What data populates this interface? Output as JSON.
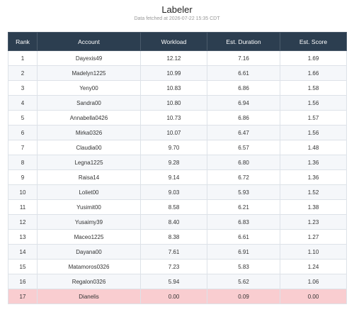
{
  "header": {
    "title": "Labeler",
    "subtitle": "Data fetched at 2026-07-22 15:35 CDT"
  },
  "table": {
    "columns": [
      "Rank",
      "Account",
      "Workload",
      "Est. Duration",
      "Est. Score"
    ],
    "rows": [
      [
        "1",
        "Dayexis49",
        "12.12",
        "7.16",
        "1.69"
      ],
      [
        "2",
        "Madelyn1225",
        "10.99",
        "6.61",
        "1.66"
      ],
      [
        "3",
        "Yeny00",
        "10.83",
        "6.86",
        "1.58"
      ],
      [
        "4",
        "Sandra00",
        "10.80",
        "6.94",
        "1.56"
      ],
      [
        "5",
        "Annabella0426",
        "10.73",
        "6.86",
        "1.57"
      ],
      [
        "6",
        "Mirka0326",
        "10.07",
        "6.47",
        "1.56"
      ],
      [
        "7",
        "Claudia00",
        "9.70",
        "6.57",
        "1.48"
      ],
      [
        "8",
        "Legna1225",
        "9.28",
        "6.80",
        "1.36"
      ],
      [
        "9",
        "Raisa14",
        "9.14",
        "6.72",
        "1.36"
      ],
      [
        "10",
        "Loliet00",
        "9.03",
        "5.93",
        "1.52"
      ],
      [
        "11",
        "Yusimit00",
        "8.58",
        "6.21",
        "1.38"
      ],
      [
        "12",
        "Yusaimy39",
        "8.40",
        "6.83",
        "1.23"
      ],
      [
        "13",
        "Maceo1225",
        "8.38",
        "6.61",
        "1.27"
      ],
      [
        "14",
        "Dayana00",
        "7.61",
        "6.91",
        "1.10"
      ],
      [
        "15",
        "Matamoros0326",
        "7.23",
        "5.83",
        "1.24"
      ],
      [
        "16",
        "Regalon0326",
        "5.94",
        "5.62",
        "1.06"
      ],
      [
        "17",
        "Dianelis",
        "0.00",
        "0.09",
        "0.00"
      ]
    ],
    "highlight_rows": [
      16
    ],
    "highlight_color": "#f9cdd0"
  }
}
